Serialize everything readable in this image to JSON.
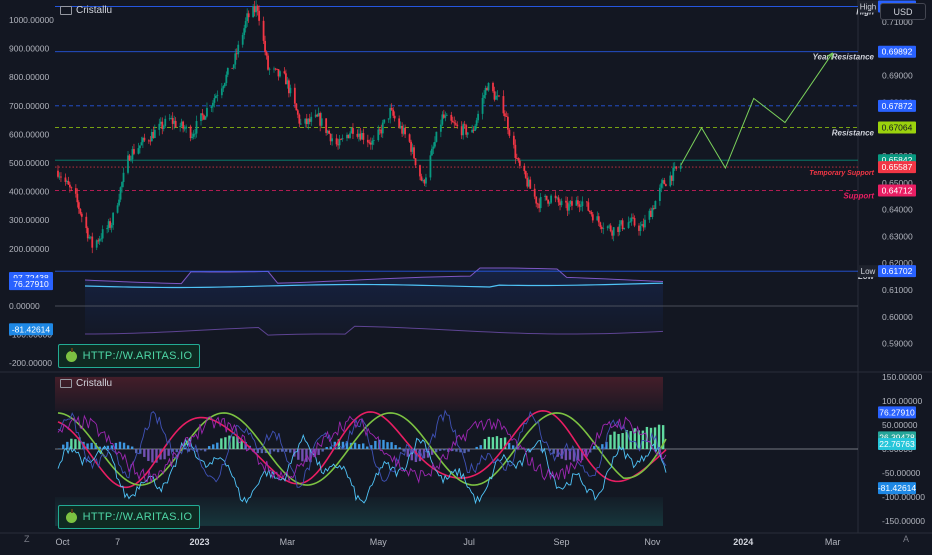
{
  "chart_data": [
    {
      "type": "candlestick",
      "title": "Cristallu",
      "currency": "USD",
      "x_ticks": [
        "Oct",
        "7",
        "2023",
        "Mar",
        "May",
        "Jul",
        "Sep",
        "Nov",
        "2024",
        "Mar"
      ],
      "right_axis_ticks": [
        "0.71000",
        "0.70000",
        "0.69000",
        "0.68000",
        "0.67000",
        "0.66000",
        "0.65000",
        "0.64000",
        "0.63000",
        "0.62000",
        "0.61000",
        "0.60000",
        "0.59000"
      ],
      "left_axis_ticks": [
        "1000.00000",
        "900.00000",
        "800.00000",
        "700.00000",
        "600.00000",
        "500.00000",
        "400.00000",
        "300.00000",
        "200.00000",
        "100.00000",
        "0.00000",
        "-100.00000",
        "-200.00000"
      ],
      "ylim": [
        0.587,
        0.7185
      ],
      "path_close": [
        [
          "2022-09-28",
          0.6545
        ],
        [
          "2022-10-10",
          0.644
        ],
        [
          "2022-10-21",
          0.6265
        ],
        [
          "2022-11-03",
          0.635
        ],
        [
          "2022-11-15",
          0.6605
        ],
        [
          "2022-11-30",
          0.668
        ],
        [
          "2022-12-12",
          0.6735
        ],
        [
          "2022-12-27",
          0.6685
        ],
        [
          "2023-01-10",
          0.681
        ],
        [
          "2023-01-24",
          0.6945
        ],
        [
          "2023-02-02",
          0.7115
        ],
        [
          "2023-02-09",
          0.7155
        ],
        [
          "2023-02-16",
          0.6925
        ],
        [
          "2023-02-28",
          0.6885
        ],
        [
          "2023-03-10",
          0.6715
        ],
        [
          "2023-03-22",
          0.674
        ],
        [
          "2023-04-04",
          0.6635
        ],
        [
          "2023-04-14",
          0.6705
        ],
        [
          "2023-04-28",
          0.6645
        ],
        [
          "2023-05-09",
          0.6765
        ],
        [
          "2023-05-22",
          0.665
        ],
        [
          "2023-05-31",
          0.6495
        ],
        [
          "2023-06-13",
          0.6745
        ],
        [
          "2023-06-23",
          0.6705
        ],
        [
          "2023-07-03",
          0.6685
        ],
        [
          "2023-07-13",
          0.6865
        ],
        [
          "2023-07-24",
          0.678
        ],
        [
          "2023-08-03",
          0.6565
        ],
        [
          "2023-08-16",
          0.6425
        ],
        [
          "2023-08-25",
          0.6445
        ],
        [
          "2023-09-04",
          0.6405
        ],
        [
          "2023-09-14",
          0.6435
        ],
        [
          "2023-09-26",
          0.6355
        ],
        [
          "2023-10-05",
          0.6325
        ],
        [
          "2023-10-17",
          0.6355
        ],
        [
          "2023-10-25",
          0.633
        ],
        [
          "2023-11-01",
          0.6405
        ],
        [
          "2023-11-08",
          0.6495
        ],
        [
          "2023-11-15",
          0.6535
        ],
        [
          "2023-11-20",
          0.6565
        ]
      ],
      "projection": [
        [
          "2023-11-20",
          0.6565
        ],
        [
          "2023-12-04",
          0.6705
        ],
        [
          "2023-12-20",
          0.6555
        ],
        [
          "2024-01-08",
          0.6815
        ],
        [
          "2024-01-29",
          0.6725
        ],
        [
          "2024-03-01",
          0.6985
        ]
      ],
      "levels": [
        {
          "name": "High",
          "value": 0.71578,
          "color": "#2962ff",
          "style": "solid",
          "label": "High"
        },
        {
          "name": "Year Resistance",
          "value": 0.69892,
          "color": "#2962ff",
          "style": "solid",
          "label": "Year Resistance"
        },
        {
          "name": "",
          "value": 0.67872,
          "color": "#2962ff",
          "style": "dashed",
          "label": ""
        },
        {
          "name": "Resistance",
          "value": 0.67064,
          "color": "#9bd20d",
          "style": "dashed",
          "label": "Resistance"
        },
        {
          "name": "",
          "value": 0.65842,
          "color": "#089981",
          "style": "solid",
          "label": ""
        },
        {
          "name": "Temporary Support",
          "value": 0.65587,
          "color": "#f23645",
          "style": "dotted",
          "label": "Temporary Support"
        },
        {
          "name": "Support",
          "value": 0.64712,
          "color": "#e91e63",
          "style": "dashed",
          "label": "Support"
        },
        {
          "name": "Low",
          "value": 0.61702,
          "color": "#2962ff",
          "style": "solid",
          "label": "Low"
        }
      ],
      "left_badges": [
        {
          "value": "97.72438",
          "color": "#2962ff"
        },
        {
          "value": "76.27910",
          "color": "#2962ff"
        },
        {
          "value": "-81.42614",
          "color": "#1e88e5"
        }
      ],
      "promo": "HTTP://W.ARITAS.IO"
    },
    {
      "type": "oscillator",
      "title": "Cristallu",
      "right_axis_ticks": [
        "150.00000",
        "100.00000",
        "50.00000",
        "0.00000",
        "-50.00000",
        "-100.00000",
        "-150.00000"
      ],
      "ylim": [
        -175,
        165
      ],
      "badges": [
        {
          "value": "76.27910",
          "color": "#2962ff"
        },
        {
          "value": "26.39478",
          "color": "#26a69a"
        },
        {
          "value": "22.76763",
          "color": "#26c6da"
        },
        {
          "value": "-81.42614",
          "color": "#1e88e5"
        }
      ],
      "promo": "HTTP://W.ARITAS.IO"
    }
  ],
  "ui": {
    "bottom_left_button": "Z",
    "bottom_right_button": "A"
  }
}
